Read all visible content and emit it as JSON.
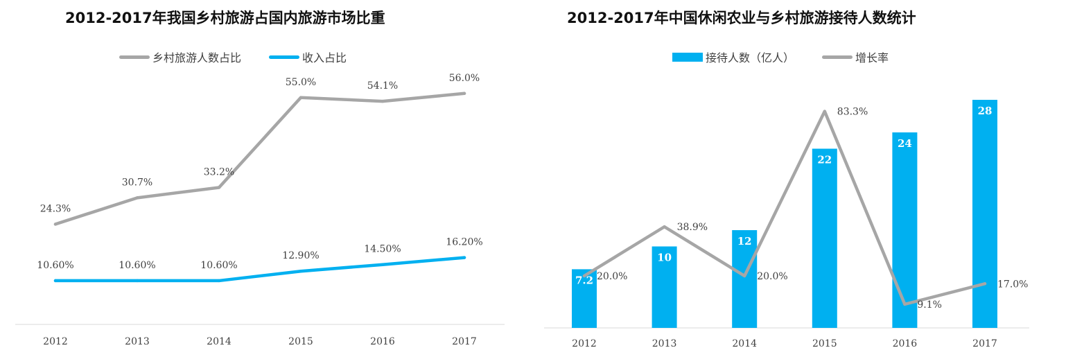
{
  "chart_data": [
    {
      "type": "line",
      "title": "2012-2017年我国乡村旅游占国内旅游市场比重",
      "categories": [
        "2012",
        "2013",
        "2014",
        "2015",
        "2016",
        "2017"
      ],
      "series": [
        {
          "name": "乡村旅游人数占比",
          "color": "#a6a6a6",
          "values": [
            24.3,
            30.7,
            33.2,
            55.0,
            54.1,
            56.0
          ],
          "labels": [
            "24.3%",
            "30.7%",
            "33.2%",
            "55.0%",
            "54.1%",
            "56.0%"
          ]
        },
        {
          "name": "收入占比",
          "color": "#00b0f0",
          "values": [
            10.6,
            10.6,
            10.6,
            12.9,
            14.5,
            16.2
          ],
          "labels": [
            "10.60%",
            "10.60%",
            "10.60%",
            "12.90%",
            "14.50%",
            "16.20%"
          ]
        }
      ],
      "ylim": [
        0,
        65
      ],
      "legend": "top",
      "grid": false
    },
    {
      "type": "bar",
      "title": "2012-2017年中国休闲农业与乡村旅游接待人数统计",
      "categories": [
        "2012",
        "2013",
        "2014",
        "2015",
        "2016",
        "2017"
      ],
      "series": [
        {
          "name": "接待人数（亿人）",
          "type": "bar",
          "color": "#00b0f0",
          "values": [
            7.2,
            10,
            12,
            22,
            24,
            28
          ],
          "labels": [
            "7.2",
            "10",
            "12",
            "22",
            "24",
            "28"
          ]
        },
        {
          "name": "增长率",
          "type": "line",
          "color": "#a6a6a6",
          "values": [
            20.0,
            38.9,
            20.0,
            83.3,
            9.1,
            17.0
          ],
          "labels": [
            "20.0%",
            "38.9%",
            "20.0%",
            "83.3%",
            "9.1%",
            "17.0%"
          ]
        }
      ],
      "ylim": [
        0,
        28
      ],
      "y2lim": [
        0,
        90
      ],
      "legend": "top",
      "grid": false
    }
  ]
}
